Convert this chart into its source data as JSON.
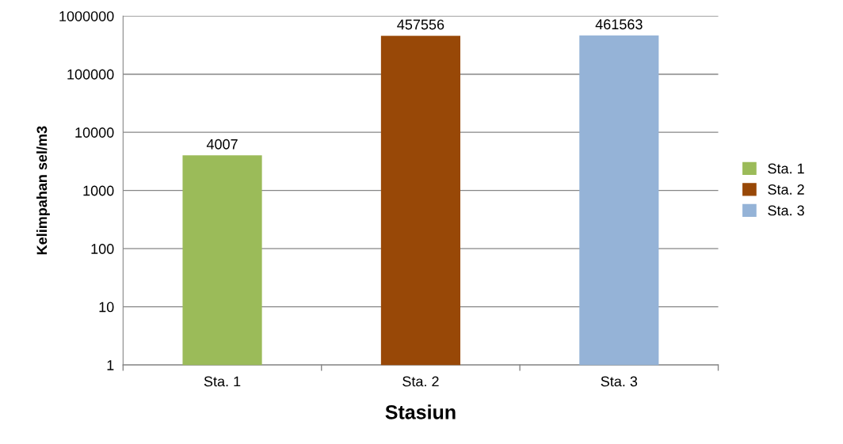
{
  "chart_data": {
    "type": "bar",
    "xlabel": "Stasiun",
    "ylabel": "Kelimpahan sel/m3",
    "categories": [
      "Sta. 1",
      "Sta. 2",
      "Sta. 3"
    ],
    "series": [
      {
        "name": "Sta. 1",
        "color": "#9bbb59",
        "values": [
          4007,
          null,
          null
        ]
      },
      {
        "name": "Sta. 2",
        "color": "#984807",
        "values": [
          null,
          457556,
          null
        ]
      },
      {
        "name": "Sta. 3",
        "color": "#95b3d7",
        "values": [
          null,
          null,
          461563
        ]
      }
    ],
    "log": true,
    "ylim": [
      1,
      1000000
    ],
    "yticks": [
      1,
      10,
      100,
      1000,
      10000,
      100000,
      1000000
    ],
    "grid": "y",
    "legend": "right",
    "data_labels": true
  }
}
